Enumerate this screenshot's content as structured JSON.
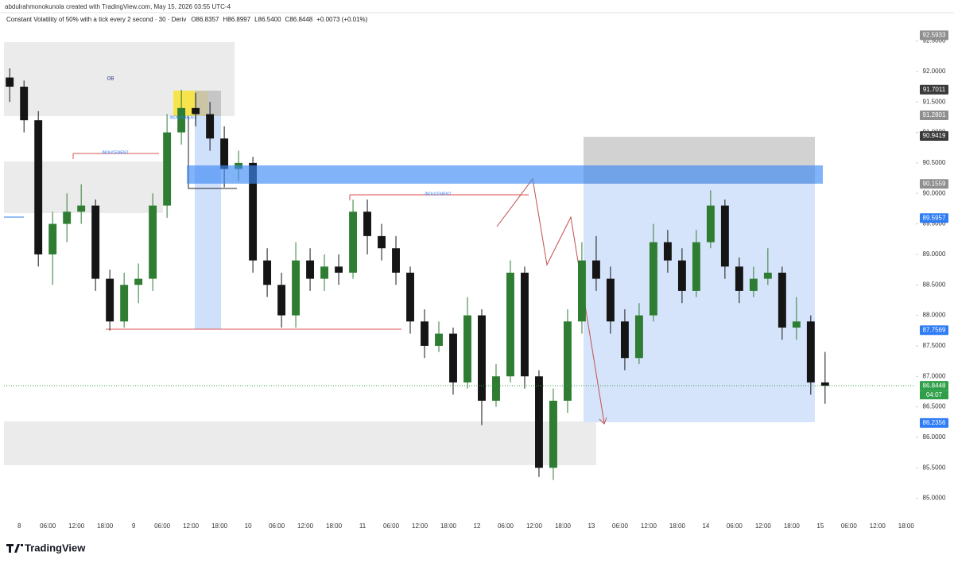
{
  "header": {
    "credit": "abdulrahmonokunola created with TradingView.com, May 15, 2026 03:55 UTC-4",
    "branding": "TradingView"
  },
  "chart_data": {
    "type": "candlestick",
    "symbol": "Constant Volatility of 50% with a tick every 2 second · 30 · Deriv",
    "ohlc_header": [
      "O86.8357",
      "H86.8997",
      "L86.5400",
      "C86.8448",
      "+0.0073 (+0.01%)"
    ],
    "x": [
      -2,
      1,
      4,
      7,
      10,
      13,
      16,
      19,
      22,
      25,
      28,
      31,
      34,
      37,
      40,
      43,
      46,
      49,
      52,
      55,
      58,
      61,
      64,
      67,
      70,
      73,
      76,
      79,
      82,
      85,
      88,
      91,
      94,
      97,
      100,
      103,
      106,
      109,
      112,
      115,
      118,
      121,
      124,
      127,
      130,
      133,
      136,
      139,
      142,
      145,
      148,
      151,
      154,
      157,
      160,
      163,
      166,
      169
    ],
    "open": [
      91.9,
      91.75,
      91.2,
      89.0,
      89.5,
      89.7,
      89.8,
      88.6,
      87.9,
      88.5,
      88.6,
      89.8,
      91.0,
      91.4,
      91.3,
      90.9,
      90.4,
      90.5,
      88.9,
      88.5,
      88.0,
      88.9,
      88.6,
      88.8,
      88.7,
      89.7,
      89.3,
      89.1,
      88.7,
      87.9,
      87.5,
      87.7,
      86.9,
      88.0,
      86.6,
      87.0,
      88.7,
      87.0,
      85.5,
      86.6,
      87.9,
      88.9,
      88.6,
      87.9,
      87.3,
      88.0,
      89.2,
      88.9,
      88.4,
      89.2,
      89.8,
      88.8,
      88.4,
      88.6,
      88.7,
      87.8,
      87.9,
      86.9
    ],
    "high": [
      92.05,
      91.85,
      91.35,
      89.7,
      90.0,
      90.15,
      89.9,
      88.75,
      88.7,
      88.85,
      90.0,
      91.3,
      91.7,
      91.65,
      91.5,
      91.1,
      90.7,
      90.6,
      89.1,
      88.7,
      89.2,
      89.1,
      89.0,
      89.0,
      89.9,
      89.9,
      89.5,
      89.3,
      88.8,
      88.1,
      87.9,
      87.8,
      88.3,
      88.1,
      87.2,
      88.9,
      88.8,
      87.1,
      86.8,
      88.1,
      89.2,
      89.3,
      88.8,
      88.1,
      88.2,
      89.5,
      89.4,
      89.1,
      89.4,
      90.05,
      89.9,
      88.95,
      88.8,
      89.1,
      88.8,
      88.3,
      88.0,
      87.4
    ],
    "low": [
      91.5,
      91.0,
      88.8,
      88.5,
      89.2,
      89.5,
      88.4,
      87.75,
      87.8,
      88.2,
      88.4,
      89.6,
      90.8,
      91.1,
      90.7,
      90.1,
      90.2,
      88.7,
      88.3,
      87.8,
      87.8,
      88.4,
      88.4,
      88.5,
      88.6,
      89.0,
      88.9,
      88.5,
      87.7,
      87.3,
      87.4,
      86.7,
      86.8,
      86.2,
      86.5,
      86.9,
      86.8,
      85.35,
      85.3,
      86.4,
      87.7,
      88.4,
      87.7,
      87.1,
      87.2,
      87.9,
      88.7,
      88.2,
      88.3,
      89.1,
      88.6,
      88.2,
      88.3,
      88.5,
      87.6,
      87.6,
      86.7,
      86.55
    ],
    "close": [
      91.75,
      91.2,
      89.0,
      89.5,
      89.7,
      89.8,
      88.6,
      87.9,
      88.5,
      88.6,
      89.8,
      91.0,
      91.4,
      91.3,
      90.9,
      90.4,
      90.5,
      88.9,
      88.5,
      88.0,
      88.9,
      88.6,
      88.8,
      88.7,
      89.7,
      89.3,
      89.1,
      88.7,
      87.9,
      87.5,
      87.7,
      86.9,
      88.0,
      86.6,
      87.0,
      88.7,
      87.0,
      85.5,
      86.6,
      87.9,
      88.9,
      88.6,
      87.9,
      87.3,
      88.0,
      89.2,
      88.9,
      88.4,
      89.2,
      89.8,
      88.8,
      88.4,
      88.6,
      88.7,
      87.8,
      87.9,
      86.9,
      86.8448
    ],
    "up_color": "#2e7d32",
    "down_color": "#151515",
    "xlim": [
      -3.2,
      187.7
    ],
    "xticks": [
      {
        "value": 0,
        "label": "8"
      },
      {
        "value": 6,
        "label": "06:00"
      },
      {
        "value": 12,
        "label": "12:00"
      },
      {
        "value": 18,
        "label": "18:00"
      },
      {
        "value": 24,
        "label": "9"
      },
      {
        "value": 30,
        "label": "06:00"
      },
      {
        "value": 36,
        "label": "12:00"
      },
      {
        "value": 42,
        "label": "18:00"
      },
      {
        "value": 48,
        "label": "10"
      },
      {
        "value": 54,
        "label": "06:00"
      },
      {
        "value": 60,
        "label": "12:00"
      },
      {
        "value": 66,
        "label": "18:00"
      },
      {
        "value": 72,
        "label": "11"
      },
      {
        "value": 78,
        "label": "06:00"
      },
      {
        "value": 84,
        "label": "12:00"
      },
      {
        "value": 90,
        "label": "18:00"
      },
      {
        "value": 96,
        "label": "12"
      },
      {
        "value": 102,
        "label": "06:00"
      },
      {
        "value": 108,
        "label": "12:00"
      },
      {
        "value": 114,
        "label": "18:00"
      },
      {
        "value": 120,
        "label": "13"
      },
      {
        "value": 126,
        "label": "06:00"
      },
      {
        "value": 132,
        "label": "12:00"
      },
      {
        "value": 138,
        "label": "18:00"
      },
      {
        "value": 144,
        "label": "14"
      },
      {
        "value": 150,
        "label": "06:00"
      },
      {
        "value": 156,
        "label": "12:00"
      },
      {
        "value": 162,
        "label": "18:00"
      },
      {
        "value": 168,
        "label": "15"
      },
      {
        "value": 174,
        "label": "06:00"
      },
      {
        "value": 180,
        "label": "12:00"
      },
      {
        "value": 186,
        "label": "18:00"
      }
    ],
    "ylim": [
      84.63,
      92.65
    ],
    "yticks": [
      {
        "value": 85,
        "label": "85.0000"
      },
      {
        "value": 85.5,
        "label": "85.5000"
      },
      {
        "value": 86,
        "label": "86.0000"
      },
      {
        "value": 86.5,
        "label": "86.5000"
      },
      {
        "value": 87,
        "label": "87.0000"
      },
      {
        "value": 87.5,
        "label": "87.5000"
      },
      {
        "value": 88,
        "label": "88.0000"
      },
      {
        "value": 88.5,
        "label": "88.5000"
      },
      {
        "value": 89,
        "label": "89.0000"
      },
      {
        "value": 89.5,
        "label": "89.5000"
      },
      {
        "value": 90,
        "label": "90.0000"
      },
      {
        "value": 90.5,
        "label": "90.5000"
      },
      {
        "value": 91,
        "label": "91.0000"
      },
      {
        "value": 91.5,
        "label": "91.5000"
      },
      {
        "value": 92,
        "label": "92.0000"
      },
      {
        "value": 92.5,
        "label": "92.5000"
      }
    ],
    "price_labels": [
      {
        "value": 92.5933,
        "color": "#8f8f8f"
      },
      {
        "value": 91.7011,
        "color": "#3a3a3a"
      },
      {
        "value": 91.2801,
        "color": "#8f8f8f"
      },
      {
        "value": 90.9419,
        "color": "#3a3a3a"
      },
      {
        "value": 90.1559,
        "color": "#8f8f8f"
      },
      {
        "value": 89.5957,
        "color": "#2f7cf6"
      },
      {
        "value": 87.7569,
        "color": "#2f7cf6"
      },
      {
        "value": 86.8448,
        "color": "#2e9e48"
      },
      {
        "value": 86.2356,
        "color": "#2f7cf6"
      }
    ],
    "countdown": "04:07",
    "annotations": [
      "OB",
      "INDUCEMENT",
      "INDUCEMENT",
      "INDUCEMENT"
    ]
  }
}
